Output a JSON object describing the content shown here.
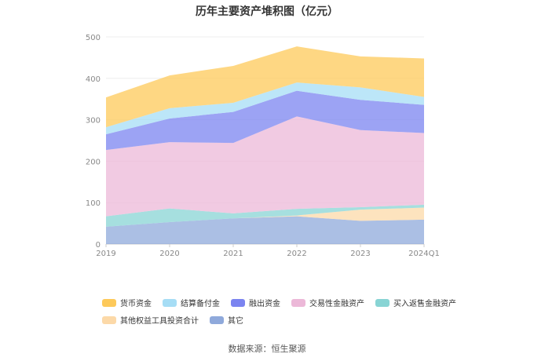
{
  "chart_data": {
    "type": "area",
    "title": "历年主要资产堆积图（亿元）",
    "categories": [
      "2019",
      "2020",
      "2021",
      "2022",
      "2023",
      "2024Q1"
    ],
    "ylim": [
      0,
      500
    ],
    "yticks": [
      0,
      100,
      200,
      300,
      400,
      500
    ],
    "grid": true,
    "legend_position": "bottom",
    "series": [
      {
        "name": "其它",
        "color": "#8fa9db",
        "values": [
          42,
          53,
          62,
          67,
          56,
          59
        ]
      },
      {
        "name": "其他权益工具投资合计",
        "color": "#fcd9a8",
        "values": [
          0,
          0,
          0,
          2,
          27,
          29
        ]
      },
      {
        "name": "买入返售金融资产",
        "color": "#88d4d4",
        "values": [
          25,
          33,
          12,
          16,
          6,
          7
        ]
      },
      {
        "name": "交易性金融资产",
        "color": "#ecb8d8",
        "values": [
          160,
          160,
          170,
          223,
          186,
          173
        ]
      },
      {
        "name": "融出资金",
        "color": "#7b84f0",
        "values": [
          38,
          57,
          75,
          62,
          73,
          68
        ]
      },
      {
        "name": "结算备付金",
        "color": "#a6ddf5",
        "values": [
          17,
          25,
          22,
          20,
          30,
          19
        ]
      },
      {
        "name": "货币资金",
        "color": "#fdc95a",
        "values": [
          72,
          79,
          89,
          87,
          75,
          93
        ]
      }
    ]
  },
  "legend_rows": [
    [
      {
        "label": "货币资金",
        "color": "#fdc95a"
      },
      {
        "label": "结算备付金",
        "color": "#a6ddf5"
      },
      {
        "label": "融出资金",
        "color": "#7b84f0"
      },
      {
        "label": "交易性金融资产",
        "color": "#ecb8d8"
      },
      {
        "label": "买入返售金融资产",
        "color": "#88d4d4"
      }
    ],
    [
      {
        "label": "其他权益工具投资合计",
        "color": "#fcd9a8"
      },
      {
        "label": "其它",
        "color": "#8fa9db"
      }
    ]
  ],
  "source": "数据来源：恒生聚源"
}
